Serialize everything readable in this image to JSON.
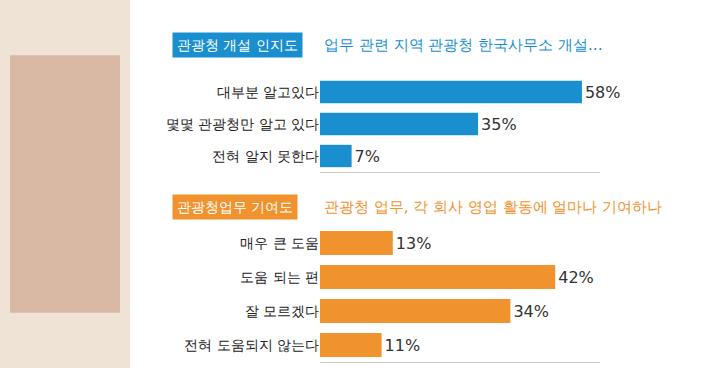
{
  "chart_data": [
    {
      "type": "bar",
      "orientation": "horizontal",
      "title": "관광청 개설 인지도",
      "subtitle": "업무 관련 지역 관광청 한국사무소 개설…",
      "categories": [
        "대부분 알고있다",
        "몇몇 관광청만 알고 있다",
        "전혀 알지 못한다"
      ],
      "values": [
        58,
        35,
        7
      ],
      "value_labels": [
        "58%",
        "35%",
        "7%"
      ],
      "color": "#1a8fd0",
      "xlim": [
        0,
        62
      ],
      "xticks": [],
      "data_labels": true,
      "tick_labels": "y",
      "grid": false
    },
    {
      "type": "bar",
      "orientation": "horizontal",
      "title": "관광청업무 기여도",
      "subtitle": "관광청 업무, 각 회사 영업 활동에 얼마나 기여하나",
      "categories": [
        "매우 큰 도움",
        "도움 되는 편",
        "잘 모르겠다",
        "전혀 도움되지 않는다"
      ],
      "values": [
        13,
        42,
        34,
        11
      ],
      "value_labels": [
        "13%",
        "42%",
        "34%",
        "11%"
      ],
      "color": "#f0922e",
      "xlim": [
        0,
        50
      ],
      "xticks": [],
      "data_labels": true,
      "tick_labels": "y",
      "grid": false
    }
  ]
}
